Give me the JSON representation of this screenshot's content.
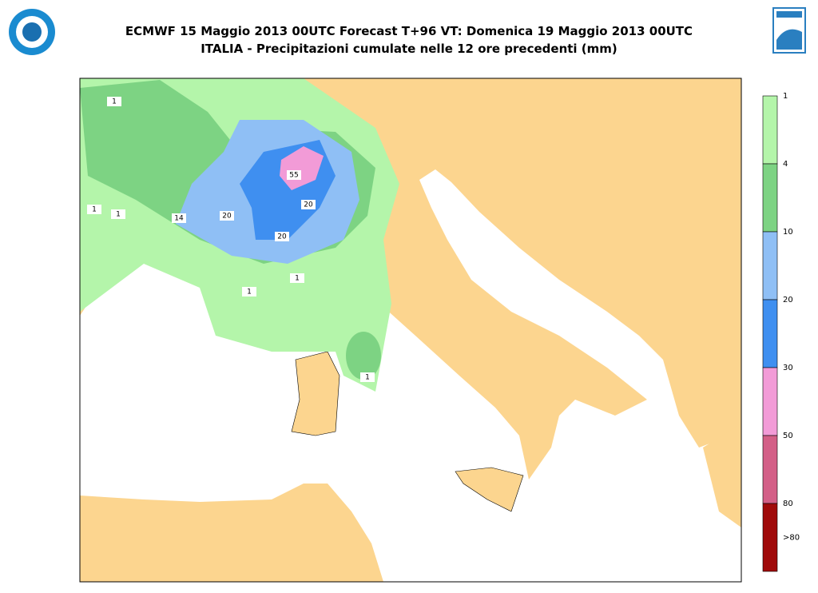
{
  "header": {
    "title_line1": "ECMWF 15 Maggio 2013 00UTC Forecast T+96 VT: Domenica 19 Maggio 2013 00UTC",
    "title_line2": "ITALIA - Precipitazioni cumulate nelle 12 ore precedenti (mm)"
  },
  "legend": {
    "labels": [
      "1",
      "4",
      "10",
      "20",
      "30",
      "50",
      "80",
      ">80"
    ],
    "colors": [
      "#b4f5aa",
      "#7dd383",
      "#8fbff5",
      "#3f8ff0",
      "#f29bd7",
      "#d35f87",
      "#a00a0a"
    ]
  },
  "map": {
    "contour_labels": [
      "1",
      "1",
      "1",
      "14",
      "20",
      "55",
      "20",
      "20",
      "1",
      "1",
      "1"
    ]
  }
}
